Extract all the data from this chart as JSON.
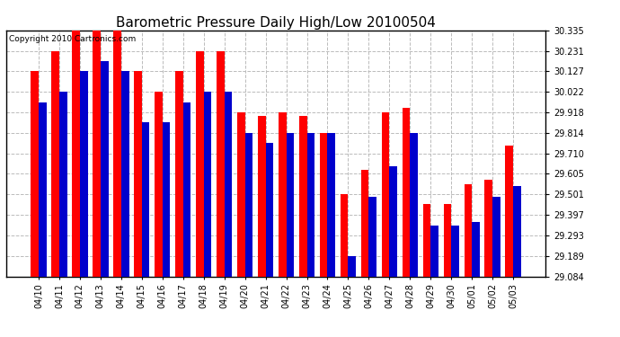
{
  "title": "Barometric Pressure Daily High/Low 20100504",
  "copyright": "Copyright 2010 Cartronics.com",
  "dates": [
    "04/10",
    "04/11",
    "04/12",
    "04/13",
    "04/14",
    "04/15",
    "04/16",
    "04/17",
    "04/18",
    "04/19",
    "04/20",
    "04/21",
    "04/22",
    "04/23",
    "04/24",
    "04/25",
    "04/26",
    "04/27",
    "04/28",
    "04/29",
    "04/30",
    "05/01",
    "05/02",
    "05/03"
  ],
  "highs": [
    30.127,
    30.231,
    30.335,
    30.335,
    30.335,
    30.127,
    30.022,
    30.127,
    30.231,
    30.231,
    29.918,
    29.9,
    29.918,
    29.9,
    29.814,
    29.501,
    29.627,
    29.918,
    29.94,
    29.45,
    29.45,
    29.554,
    29.575,
    29.75
  ],
  "lows": [
    29.97,
    30.022,
    30.127,
    30.18,
    30.127,
    29.866,
    29.866,
    29.97,
    30.022,
    30.022,
    29.814,
    29.762,
    29.814,
    29.814,
    29.814,
    29.189,
    29.49,
    29.645,
    29.814,
    29.34,
    29.34,
    29.36,
    29.49,
    29.545
  ],
  "y_min": 29.084,
  "y_max": 30.335,
  "y_ticks": [
    29.084,
    29.189,
    29.293,
    29.397,
    29.501,
    29.605,
    29.71,
    29.814,
    29.918,
    30.022,
    30.127,
    30.231,
    30.335
  ],
  "bar_width": 0.38,
  "high_color": "#ff0000",
  "low_color": "#0000cc",
  "bg_color": "#ffffff",
  "grid_color": "#bbbbbb",
  "title_fontsize": 11,
  "tick_fontsize": 7
}
